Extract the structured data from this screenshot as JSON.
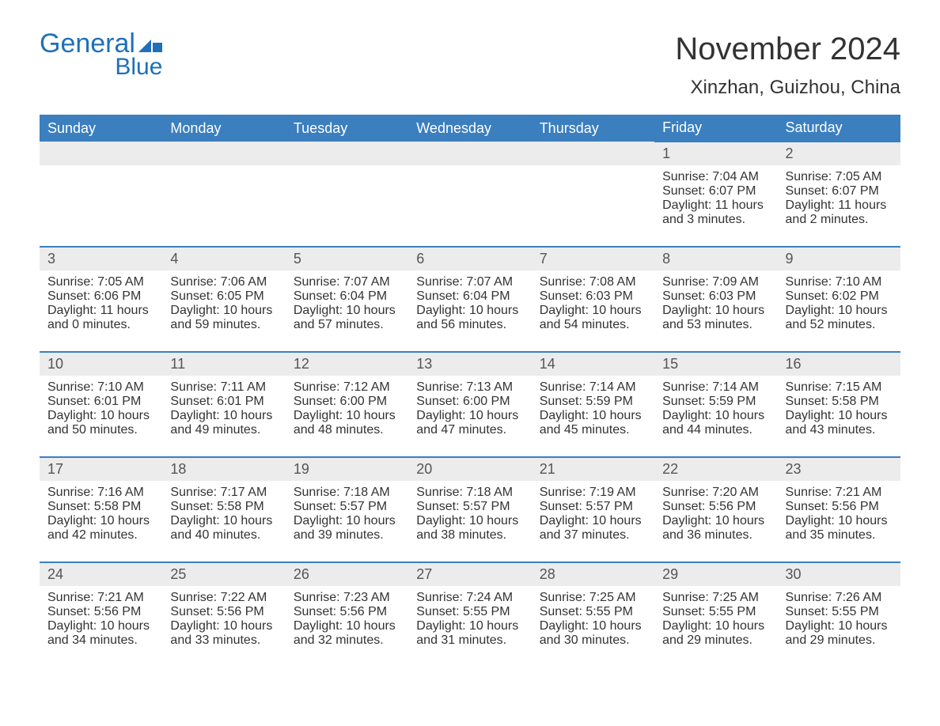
{
  "logo": {
    "general": "General",
    "blue": "Blue"
  },
  "title": "November 2024",
  "location": "Xinzhan, Guizhou, China",
  "colors": {
    "brand_blue": "#3b7fbf",
    "logo_blue": "#1f70b8",
    "header_text": "#ffffff",
    "row_bg": "#ececec",
    "text": "#333333"
  },
  "weekdays": [
    "Sunday",
    "Monday",
    "Tuesday",
    "Wednesday",
    "Thursday",
    "Friday",
    "Saturday"
  ],
  "weeks": [
    {
      "numbers": [
        "",
        "",
        "",
        "",
        "",
        "1",
        "2"
      ],
      "details": [
        null,
        null,
        null,
        null,
        null,
        {
          "sunrise": "Sunrise: 7:04 AM",
          "sunset": "Sunset: 6:07 PM",
          "dl1": "Daylight: 11 hours",
          "dl2": "and 3 minutes."
        },
        {
          "sunrise": "Sunrise: 7:05 AM",
          "sunset": "Sunset: 6:07 PM",
          "dl1": "Daylight: 11 hours",
          "dl2": "and 2 minutes."
        }
      ]
    },
    {
      "numbers": [
        "3",
        "4",
        "5",
        "6",
        "7",
        "8",
        "9"
      ],
      "details": [
        {
          "sunrise": "Sunrise: 7:05 AM",
          "sunset": "Sunset: 6:06 PM",
          "dl1": "Daylight: 11 hours",
          "dl2": "and 0 minutes."
        },
        {
          "sunrise": "Sunrise: 7:06 AM",
          "sunset": "Sunset: 6:05 PM",
          "dl1": "Daylight: 10 hours",
          "dl2": "and 59 minutes."
        },
        {
          "sunrise": "Sunrise: 7:07 AM",
          "sunset": "Sunset: 6:04 PM",
          "dl1": "Daylight: 10 hours",
          "dl2": "and 57 minutes."
        },
        {
          "sunrise": "Sunrise: 7:07 AM",
          "sunset": "Sunset: 6:04 PM",
          "dl1": "Daylight: 10 hours",
          "dl2": "and 56 minutes."
        },
        {
          "sunrise": "Sunrise: 7:08 AM",
          "sunset": "Sunset: 6:03 PM",
          "dl1": "Daylight: 10 hours",
          "dl2": "and 54 minutes."
        },
        {
          "sunrise": "Sunrise: 7:09 AM",
          "sunset": "Sunset: 6:03 PM",
          "dl1": "Daylight: 10 hours",
          "dl2": "and 53 minutes."
        },
        {
          "sunrise": "Sunrise: 7:10 AM",
          "sunset": "Sunset: 6:02 PM",
          "dl1": "Daylight: 10 hours",
          "dl2": "and 52 minutes."
        }
      ]
    },
    {
      "numbers": [
        "10",
        "11",
        "12",
        "13",
        "14",
        "15",
        "16"
      ],
      "details": [
        {
          "sunrise": "Sunrise: 7:10 AM",
          "sunset": "Sunset: 6:01 PM",
          "dl1": "Daylight: 10 hours",
          "dl2": "and 50 minutes."
        },
        {
          "sunrise": "Sunrise: 7:11 AM",
          "sunset": "Sunset: 6:01 PM",
          "dl1": "Daylight: 10 hours",
          "dl2": "and 49 minutes."
        },
        {
          "sunrise": "Sunrise: 7:12 AM",
          "sunset": "Sunset: 6:00 PM",
          "dl1": "Daylight: 10 hours",
          "dl2": "and 48 minutes."
        },
        {
          "sunrise": "Sunrise: 7:13 AM",
          "sunset": "Sunset: 6:00 PM",
          "dl1": "Daylight: 10 hours",
          "dl2": "and 47 minutes."
        },
        {
          "sunrise": "Sunrise: 7:14 AM",
          "sunset": "Sunset: 5:59 PM",
          "dl1": "Daylight: 10 hours",
          "dl2": "and 45 minutes."
        },
        {
          "sunrise": "Sunrise: 7:14 AM",
          "sunset": "Sunset: 5:59 PM",
          "dl1": "Daylight: 10 hours",
          "dl2": "and 44 minutes."
        },
        {
          "sunrise": "Sunrise: 7:15 AM",
          "sunset": "Sunset: 5:58 PM",
          "dl1": "Daylight: 10 hours",
          "dl2": "and 43 minutes."
        }
      ]
    },
    {
      "numbers": [
        "17",
        "18",
        "19",
        "20",
        "21",
        "22",
        "23"
      ],
      "details": [
        {
          "sunrise": "Sunrise: 7:16 AM",
          "sunset": "Sunset: 5:58 PM",
          "dl1": "Daylight: 10 hours",
          "dl2": "and 42 minutes."
        },
        {
          "sunrise": "Sunrise: 7:17 AM",
          "sunset": "Sunset: 5:58 PM",
          "dl1": "Daylight: 10 hours",
          "dl2": "and 40 minutes."
        },
        {
          "sunrise": "Sunrise: 7:18 AM",
          "sunset": "Sunset: 5:57 PM",
          "dl1": "Daylight: 10 hours",
          "dl2": "and 39 minutes."
        },
        {
          "sunrise": "Sunrise: 7:18 AM",
          "sunset": "Sunset: 5:57 PM",
          "dl1": "Daylight: 10 hours",
          "dl2": "and 38 minutes."
        },
        {
          "sunrise": "Sunrise: 7:19 AM",
          "sunset": "Sunset: 5:57 PM",
          "dl1": "Daylight: 10 hours",
          "dl2": "and 37 minutes."
        },
        {
          "sunrise": "Sunrise: 7:20 AM",
          "sunset": "Sunset: 5:56 PM",
          "dl1": "Daylight: 10 hours",
          "dl2": "and 36 minutes."
        },
        {
          "sunrise": "Sunrise: 7:21 AM",
          "sunset": "Sunset: 5:56 PM",
          "dl1": "Daylight: 10 hours",
          "dl2": "and 35 minutes."
        }
      ]
    },
    {
      "numbers": [
        "24",
        "25",
        "26",
        "27",
        "28",
        "29",
        "30"
      ],
      "details": [
        {
          "sunrise": "Sunrise: 7:21 AM",
          "sunset": "Sunset: 5:56 PM",
          "dl1": "Daylight: 10 hours",
          "dl2": "and 34 minutes."
        },
        {
          "sunrise": "Sunrise: 7:22 AM",
          "sunset": "Sunset: 5:56 PM",
          "dl1": "Daylight: 10 hours",
          "dl2": "and 33 minutes."
        },
        {
          "sunrise": "Sunrise: 7:23 AM",
          "sunset": "Sunset: 5:56 PM",
          "dl1": "Daylight: 10 hours",
          "dl2": "and 32 minutes."
        },
        {
          "sunrise": "Sunrise: 7:24 AM",
          "sunset": "Sunset: 5:55 PM",
          "dl1": "Daylight: 10 hours",
          "dl2": "and 31 minutes."
        },
        {
          "sunrise": "Sunrise: 7:25 AM",
          "sunset": "Sunset: 5:55 PM",
          "dl1": "Daylight: 10 hours",
          "dl2": "and 30 minutes."
        },
        {
          "sunrise": "Sunrise: 7:25 AM",
          "sunset": "Sunset: 5:55 PM",
          "dl1": "Daylight: 10 hours",
          "dl2": "and 29 minutes."
        },
        {
          "sunrise": "Sunrise: 7:26 AM",
          "sunset": "Sunset: 5:55 PM",
          "dl1": "Daylight: 10 hours",
          "dl2": "and 29 minutes."
        }
      ]
    }
  ]
}
